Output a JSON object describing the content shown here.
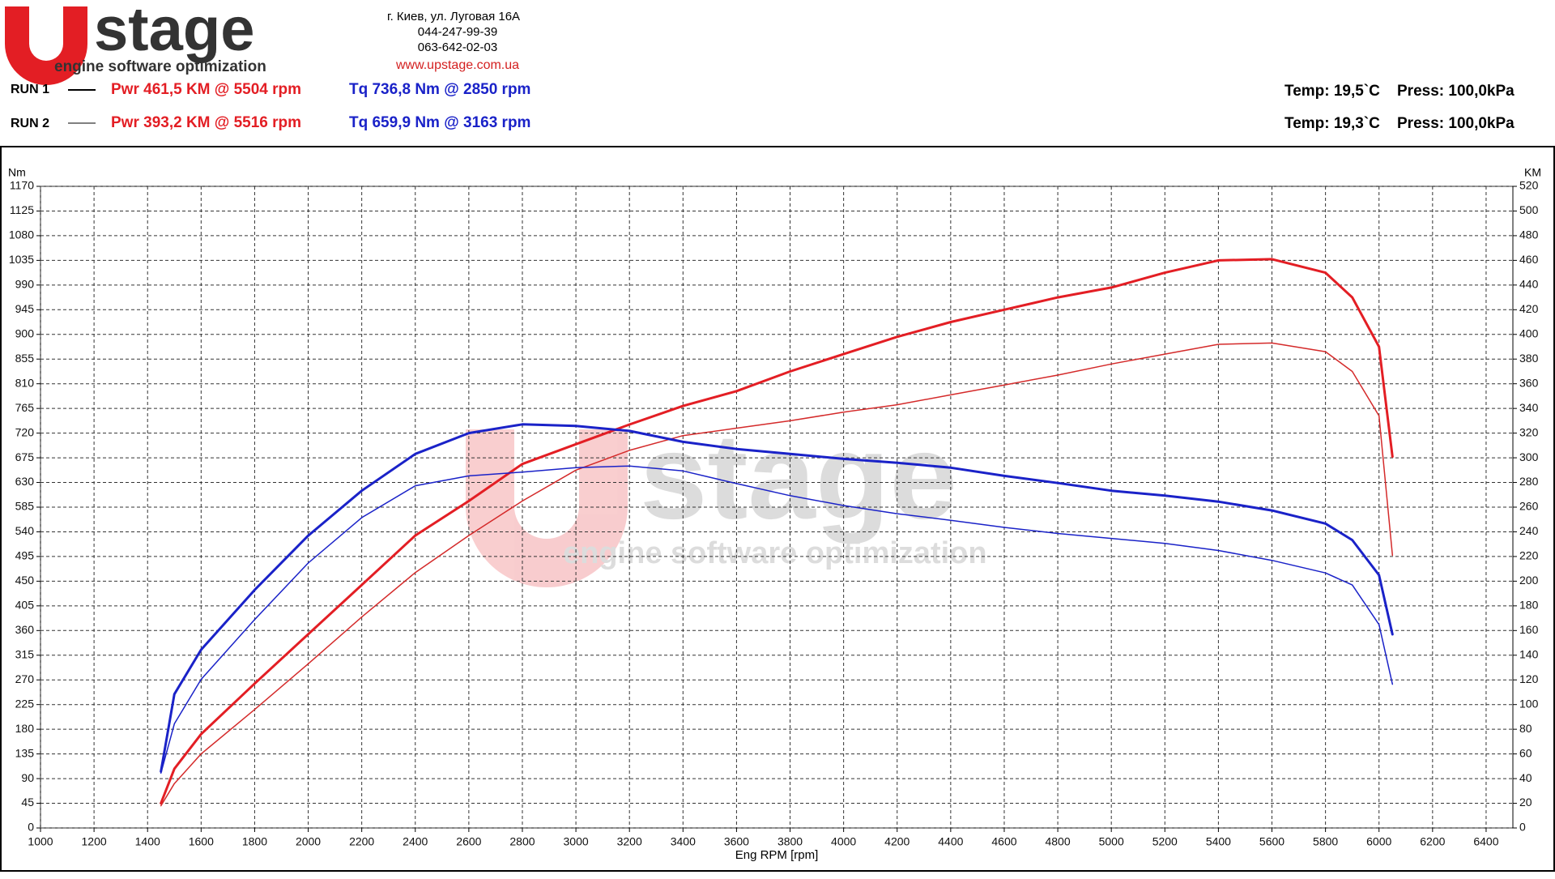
{
  "header": {
    "logo_word": "stage",
    "logo_tagline": "engine software optimization",
    "address": [
      "г. Киев, ул. Луговая 16А",
      "044-247-99-39",
      "063-642-02-03"
    ],
    "url": "www.upstage.com.ua",
    "runs": [
      {
        "label": "RUN 1",
        "power": "Pwr  461,5 KM @ 5504 rpm",
        "torque": "Tq 736,8 Nm @ 2850 rpm",
        "temp": "Temp: 19,5`C",
        "press": "Press: 100,0kPa"
      },
      {
        "label": "RUN 2",
        "power": "Pwr  393,2 KM @ 5516 rpm",
        "torque": "Tq 659,9 Nm @ 3163 rpm",
        "temp": "Temp: 19,3`C",
        "press": "Press: 100,0kPa"
      }
    ]
  },
  "watermark": {
    "word": "stage",
    "tagline": "engine software optimization"
  },
  "chart_data": {
    "type": "line",
    "grid": true,
    "x_label": "Eng RPM [rpm]",
    "y_label": "Nm",
    "y2_label": "KM",
    "x": [
      1450,
      1500,
      1600,
      1800,
      2000,
      2200,
      2400,
      2600,
      2800,
      3000,
      3200,
      3400,
      3600,
      3800,
      4000,
      4200,
      4400,
      4600,
      4800,
      5000,
      5200,
      5400,
      5600,
      5800,
      5900,
      6000,
      6050
    ],
    "xlim": [
      1000,
      6500
    ],
    "xticks": [
      1000,
      1200,
      1400,
      1600,
      1800,
      2000,
      2200,
      2400,
      2600,
      2800,
      3000,
      3200,
      3400,
      3600,
      3800,
      4000,
      4200,
      4400,
      4600,
      4800,
      5000,
      5200,
      5400,
      5600,
      5800,
      6000,
      6200,
      6400
    ],
    "ylim": [
      0,
      1170
    ],
    "yticks": [
      0,
      45,
      90,
      135,
      180,
      225,
      270,
      315,
      360,
      405,
      450,
      495,
      540,
      585,
      630,
      675,
      720,
      765,
      810,
      855,
      900,
      945,
      990,
      1035,
      1080,
      1125,
      1170
    ],
    "y2lim": [
      0,
      520
    ],
    "y2ticks": [
      0,
      20,
      40,
      60,
      80,
      100,
      120,
      140,
      160,
      180,
      200,
      220,
      240,
      260,
      280,
      300,
      320,
      340,
      360,
      380,
      400,
      420,
      440,
      460,
      480,
      500,
      520
    ],
    "series": [
      {
        "color": "#e31e24",
        "width": 3,
        "axis": "y2",
        "values": [
          20,
          48,
          76,
          117,
          157,
          197,
          237,
          265,
          295,
          311,
          327,
          342,
          354,
          370,
          384,
          398,
          410,
          420,
          430,
          438,
          450,
          460,
          461,
          450,
          430,
          390,
          301
        ]
      },
      {
        "color": "#d42a2a",
        "width": 1.5,
        "axis": "y2",
        "values": [
          18,
          36,
          60,
          96,
          133,
          171,
          207,
          237,
          265,
          290,
          306,
          318,
          324,
          330,
          337,
          343,
          351,
          359,
          367,
          376,
          384,
          392,
          393,
          386,
          370,
          334,
          221
        ]
      },
      {
        "color": "#1a22c8",
        "width": 3,
        "values": [
          103,
          244,
          325,
          434,
          533,
          615,
          682,
          720,
          736,
          733,
          724,
          704,
          691,
          682,
          673,
          666,
          657,
          642,
          629,
          615,
          606,
          595,
          579,
          555,
          525,
          461,
          353
        ]
      },
      {
        "color": "#1a22c8",
        "width": 1.5,
        "values": [
          100,
          190,
          271,
          380,
          483,
          566,
          624,
          642,
          649,
          657,
          660,
          651,
          628,
          606,
          588,
          573,
          561,
          548,
          537,
          528,
          519,
          506,
          488,
          465,
          443,
          371,
          262
        ]
      }
    ]
  }
}
